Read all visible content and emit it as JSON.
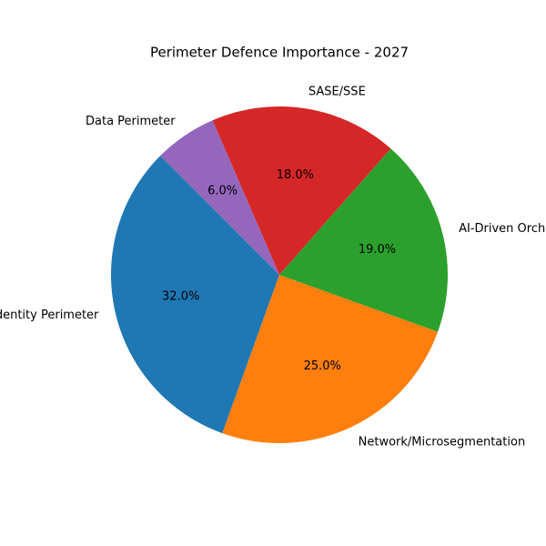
{
  "chart_data": {
    "type": "pie",
    "title": "Perimeter Defence Importance - 2027",
    "categories": [
      "Identity Perimeter",
      "Network/Microsegmentation",
      "AI-Driven Orchestration",
      "SASE/SSE",
      "Data Perimeter"
    ],
    "values": [
      32,
      25,
      19,
      18,
      6
    ],
    "value_labels": [
      "32.0%",
      "25.0%",
      "19.0%",
      "18.0%",
      "6.0%"
    ],
    "colors": [
      "#1f77b4",
      "#ff7f0e",
      "#2ca02c",
      "#d62728",
      "#9467bd"
    ]
  }
}
